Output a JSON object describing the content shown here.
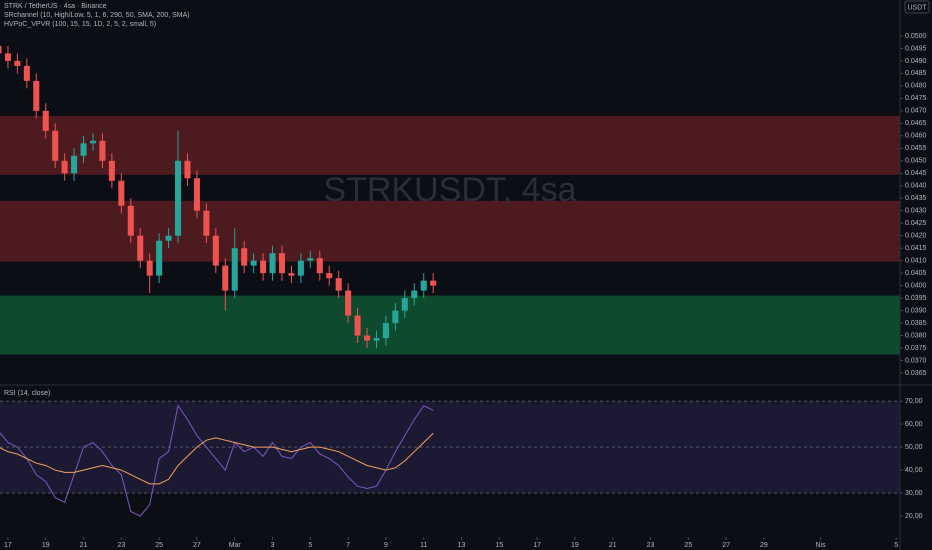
{
  "header": {
    "symbol": "STRK / TetherUS · 4sa · Binance",
    "indicator1": "SRchannel (10, High/Low, 5, 1, 6, 290, 50, SMA, 200, SMA)",
    "indicator2": "HVPoC_VPVR (100, 15, 15, 1D, 2, 5, 2, small, 5)",
    "watermark": "STRKUSDT, 4sa",
    "currency": "USDT"
  },
  "chart_data": [
    {
      "type": "candlestick",
      "x": [
        -0.5,
        0,
        0.5,
        1,
        1.5,
        2,
        2.5,
        3,
        3.5,
        4,
        4.5,
        5,
        5.5,
        6,
        6.5,
        7,
        7.5,
        8,
        8.5,
        9,
        9.5,
        10,
        10.5,
        11,
        11.5,
        12,
        12.5,
        13,
        13.5,
        14,
        14.5,
        15,
        15.5,
        16,
        16.5,
        17,
        17.5,
        18,
        18.5,
        19,
        19.5,
        20,
        20.5,
        21,
        21.5,
        22,
        22.5
      ],
      "open": [
        0.0496,
        0.0493,
        0.049,
        0.0488,
        0.0482,
        0.047,
        0.0462,
        0.045,
        0.0445,
        0.0452,
        0.0457,
        0.0458,
        0.045,
        0.0442,
        0.0432,
        0.042,
        0.041,
        0.0404,
        0.0418,
        0.042,
        0.045,
        0.0443,
        0.043,
        0.042,
        0.0408,
        0.0398,
        0.0415,
        0.0408,
        0.041,
        0.0405,
        0.0413,
        0.0405,
        0.0404,
        0.041,
        0.0411,
        0.0405,
        0.0403,
        0.0398,
        0.0388,
        0.038,
        0.0378,
        0.0379,
        0.0385,
        0.039,
        0.0395,
        0.0398,
        0.0402
      ],
      "high": [
        0.0499,
        0.0496,
        0.0493,
        0.0491,
        0.0485,
        0.0473,
        0.0465,
        0.0453,
        0.0455,
        0.046,
        0.0461,
        0.0461,
        0.0453,
        0.0445,
        0.0435,
        0.0423,
        0.0413,
        0.0421,
        0.0423,
        0.0462,
        0.0453,
        0.0446,
        0.0433,
        0.0423,
        0.0411,
        0.0423,
        0.0418,
        0.0413,
        0.0413,
        0.0416,
        0.0416,
        0.0408,
        0.0413,
        0.0414,
        0.0414,
        0.0408,
        0.0406,
        0.0401,
        0.0391,
        0.0383,
        0.0382,
        0.0388,
        0.0393,
        0.0398,
        0.0401,
        0.0405,
        0.0405
      ],
      "low": [
        0.049,
        0.0487,
        0.0485,
        0.0479,
        0.0467,
        0.0459,
        0.0447,
        0.0442,
        0.0442,
        0.0449,
        0.0454,
        0.0447,
        0.0439,
        0.0429,
        0.0417,
        0.0407,
        0.0397,
        0.0401,
        0.0415,
        0.0417,
        0.044,
        0.0427,
        0.0417,
        0.0405,
        0.039,
        0.0395,
        0.0405,
        0.0405,
        0.0402,
        0.0402,
        0.0402,
        0.0401,
        0.0401,
        0.0407,
        0.0402,
        0.04,
        0.0395,
        0.0385,
        0.0377,
        0.0375,
        0.0375,
        0.0376,
        0.0382,
        0.0387,
        0.0392,
        0.0395,
        0.0397
      ],
      "close": [
        0.0493,
        0.049,
        0.0488,
        0.0482,
        0.047,
        0.0462,
        0.045,
        0.0445,
        0.0452,
        0.0457,
        0.0458,
        0.045,
        0.0442,
        0.0432,
        0.042,
        0.041,
        0.0404,
        0.0418,
        0.042,
        0.045,
        0.0443,
        0.043,
        0.042,
        0.0408,
        0.0398,
        0.0415,
        0.0408,
        0.041,
        0.0405,
        0.0413,
        0.0405,
        0.0404,
        0.041,
        0.0411,
        0.0405,
        0.0403,
        0.0398,
        0.0388,
        0.038,
        0.0378,
        0.0379,
        0.0385,
        0.039,
        0.0395,
        0.0398,
        0.0402,
        0.04
      ],
      "up_color": "#26a69a",
      "down_color": "#ef5350",
      "zones": [
        {
          "low": 0.04444,
          "high": 0.0468,
          "color": "#4d1a1f"
        },
        {
          "low": 0.04096,
          "high": 0.0434,
          "color": "#4d1a1f"
        },
        {
          "low": 0.03724,
          "high": 0.0396,
          "color": "#0d4a2e"
        }
      ],
      "xlim": [
        -0.42,
        47.2
      ],
      "ylim": [
        0.03602,
        0.05144
      ],
      "yticks": [
        {
          "value": 0.0365,
          "label": "0.0365"
        },
        {
          "value": 0.037,
          "label": "0.0370"
        },
        {
          "value": 0.0375,
          "label": "0.0375"
        },
        {
          "value": 0.038,
          "label": "0.0380"
        },
        {
          "value": 0.0385,
          "label": "0.0385"
        },
        {
          "value": 0.039,
          "label": "0.0390"
        },
        {
          "value": 0.0395,
          "label": "0.0395"
        },
        {
          "value": 0.04,
          "label": "0.0400"
        },
        {
          "value": 0.0405,
          "label": "0.0405"
        },
        {
          "value": 0.041,
          "label": "0.0410"
        },
        {
          "value": 0.0415,
          "label": "0.0415"
        },
        {
          "value": 0.042,
          "label": "0.0420"
        },
        {
          "value": 0.0425,
          "label": "0.0425"
        },
        {
          "value": 0.043,
          "label": "0.0430"
        },
        {
          "value": 0.0435,
          "label": "0.0435"
        },
        {
          "value": 0.044,
          "label": "0.0440"
        },
        {
          "value": 0.0445,
          "label": "0.0445"
        },
        {
          "value": 0.045,
          "label": "0.0450"
        },
        {
          "value": 0.0455,
          "label": "0.0455"
        },
        {
          "value": 0.046,
          "label": "0.0460"
        },
        {
          "value": 0.0465,
          "label": "0.0465"
        },
        {
          "value": 0.047,
          "label": "0.0470"
        },
        {
          "value": 0.0475,
          "label": "0.0475"
        },
        {
          "value": 0.048,
          "label": "0.0480"
        },
        {
          "value": 0.0485,
          "label": "0.0485"
        },
        {
          "value": 0.049,
          "label": "0.0490"
        },
        {
          "value": 0.0495,
          "label": "0.0495"
        },
        {
          "value": 0.05,
          "label": "0.0500"
        }
      ]
    },
    {
      "type": "line",
      "title": "RSI (14, close)",
      "x": [
        -0.5,
        0,
        0.5,
        1,
        1.5,
        2,
        2.5,
        3,
        3.5,
        4,
        4.5,
        5,
        5.5,
        6,
        6.5,
        7,
        7.5,
        8,
        8.5,
        9,
        9.5,
        10,
        10.5,
        11,
        11.5,
        12,
        12.5,
        13,
        13.5,
        14,
        14.5,
        15,
        15.5,
        16,
        16.5,
        17,
        17.5,
        18,
        18.5,
        19,
        19.5,
        20,
        20.5,
        21,
        21.5,
        22,
        22.5
      ],
      "series": [
        {
          "color": "#7e57c2",
          "values": [
            57,
            52,
            50,
            45,
            38,
            35,
            28,
            26,
            38,
            50,
            52,
            48,
            42,
            38,
            22,
            20,
            25,
            45,
            48,
            68,
            62,
            55,
            50,
            45,
            40,
            52,
            48,
            50,
            46,
            52,
            46,
            45,
            50,
            52,
            47,
            45,
            42,
            37,
            33,
            32,
            33,
            40,
            48,
            55,
            62,
            68,
            66
          ]
        },
        {
          "color": "#f5a15b",
          "values": [
            50,
            48,
            47,
            45,
            43,
            42,
            40,
            39,
            39,
            40,
            41,
            42,
            41,
            40,
            38,
            36,
            34,
            34,
            36,
            42,
            46,
            50,
            53,
            54,
            53,
            52,
            51,
            50,
            50,
            50,
            49,
            48,
            49,
            50,
            50,
            49,
            48,
            46,
            44,
            42,
            41,
            40,
            41,
            44,
            48,
            52,
            56
          ]
        }
      ],
      "levels": [
        70,
        50,
        30
      ],
      "xlim": [
        -0.42,
        47.2
      ],
      "ylim": [
        10.9,
        77
      ],
      "yticks": [
        {
          "value": 70,
          "label": "70,00"
        },
        {
          "value": 60,
          "label": "60,00"
        },
        {
          "value": 50,
          "label": "50,00"
        },
        {
          "value": 40,
          "label": "40,00"
        },
        {
          "value": 30,
          "label": "30,00"
        },
        {
          "value": 20,
          "label": "20,00"
        }
      ],
      "xticks": [
        {
          "value": 0,
          "label": "17"
        },
        {
          "value": 2,
          "label": "19"
        },
        {
          "value": 4,
          "label": "21"
        },
        {
          "value": 6,
          "label": "23"
        },
        {
          "value": 8,
          "label": "25"
        },
        {
          "value": 10,
          "label": "27"
        },
        {
          "value": 12,
          "label": "Mar"
        },
        {
          "value": 14,
          "label": "3"
        },
        {
          "value": 16,
          "label": "5"
        },
        {
          "value": 18,
          "label": "7"
        },
        {
          "value": 20,
          "label": "9"
        },
        {
          "value": 22,
          "label": "11"
        },
        {
          "value": 24,
          "label": "13"
        },
        {
          "value": 26,
          "label": "15"
        },
        {
          "value": 28,
          "label": "17"
        },
        {
          "value": 30,
          "label": "19"
        },
        {
          "value": 32,
          "label": "21"
        },
        {
          "value": 34,
          "label": "23"
        },
        {
          "value": 36,
          "label": "25"
        },
        {
          "value": 38,
          "label": "27"
        },
        {
          "value": 40,
          "label": "29"
        },
        {
          "value": 43,
          "label": "Nis"
        },
        {
          "value": 47,
          "label": "5"
        }
      ]
    }
  ]
}
